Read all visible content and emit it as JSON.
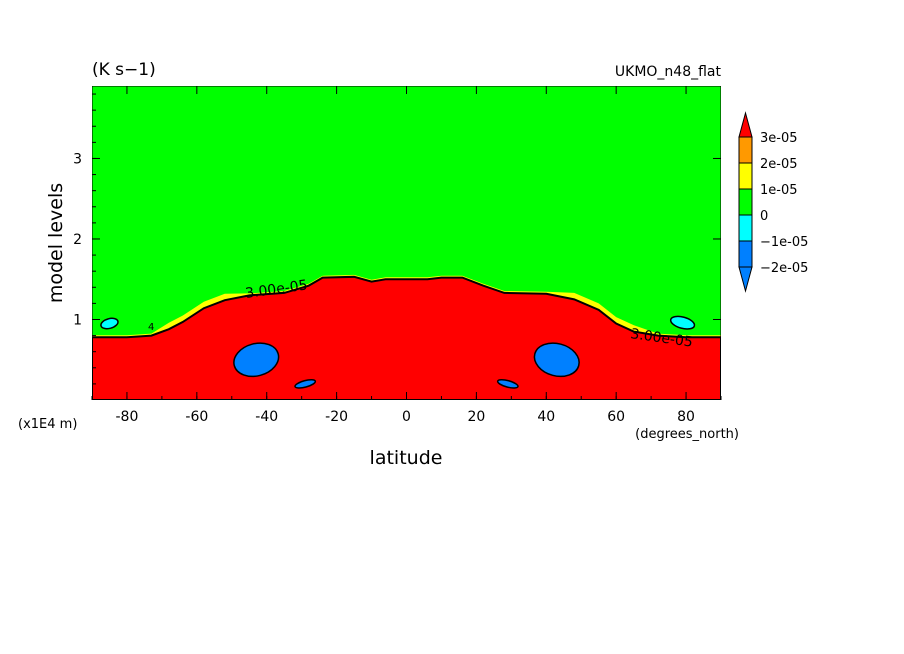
{
  "chart_data": {
    "type": "heatmap",
    "units_label": "(K s−1)",
    "model_label": "UKMO_n48_flat",
    "xlabel": "latitude",
    "x_units": "(degrees_north)",
    "ylabel": "model levels",
    "y_units": "(x1E4 m)",
    "xlim": [
      -90,
      90
    ],
    "ylim": [
      0,
      3.9
    ],
    "x_ticks": [
      -80,
      -60,
      -40,
      -20,
      0,
      20,
      40,
      60,
      80
    ],
    "y_ticks": [
      1,
      2,
      3
    ],
    "colorbar": {
      "levels": [
        "3e-05",
        "2e-05",
        "1e-05",
        "0",
        "−1e-05",
        "−2e-05"
      ],
      "colors": [
        "#ff0000",
        "#ff9900",
        "#ffff00",
        "#00ff00",
        "#00ffff",
        "#0080ff"
      ]
    },
    "contour_labels": [
      "3.00e-05",
      "3.00e-05",
      "4"
    ],
    "red_region_top": [
      [
        -90,
        0.78
      ],
      [
        -80,
        0.78
      ],
      [
        -73,
        0.8
      ],
      [
        -68,
        0.88
      ],
      [
        -64,
        0.97
      ],
      [
        -58,
        1.14
      ],
      [
        -52,
        1.24
      ],
      [
        -45,
        1.3
      ],
      [
        -35,
        1.33
      ],
      [
        -28,
        1.42
      ],
      [
        -24,
        1.52
      ],
      [
        -15,
        1.53
      ],
      [
        -10,
        1.47
      ],
      [
        -6,
        1.5
      ],
      [
        0,
        1.5
      ],
      [
        6,
        1.5
      ],
      [
        10,
        1.52
      ],
      [
        16,
        1.52
      ],
      [
        22,
        1.42
      ],
      [
        28,
        1.33
      ],
      [
        40,
        1.32
      ],
      [
        48,
        1.25
      ],
      [
        55,
        1.12
      ],
      [
        60,
        0.95
      ],
      [
        65,
        0.85
      ],
      [
        72,
        0.8
      ],
      [
        80,
        0.78
      ],
      [
        90,
        0.78
      ]
    ],
    "negative_blobs": [
      {
        "lat": -43,
        "level": 0.5,
        "dlat": 6.5,
        "dlevel": 0.2,
        "color": "#0080ff"
      },
      {
        "lat": 43,
        "level": 0.5,
        "dlat": 6.5,
        "dlevel": 0.2,
        "color": "#0080ff"
      },
      {
        "lat": -29,
        "level": 0.2,
        "dlat": 3,
        "dlevel": 0.04,
        "color": "#0080ff"
      },
      {
        "lat": 29,
        "level": 0.2,
        "dlat": 3,
        "dlevel": 0.04,
        "color": "#0080ff"
      },
      {
        "lat": -85,
        "level": 0.95,
        "dlat": 2.5,
        "dlevel": 0.06,
        "color": "#00ffff"
      },
      {
        "lat": 79,
        "level": 0.96,
        "dlat": 3.5,
        "dlevel": 0.07,
        "color": "#00ffff"
      }
    ]
  }
}
